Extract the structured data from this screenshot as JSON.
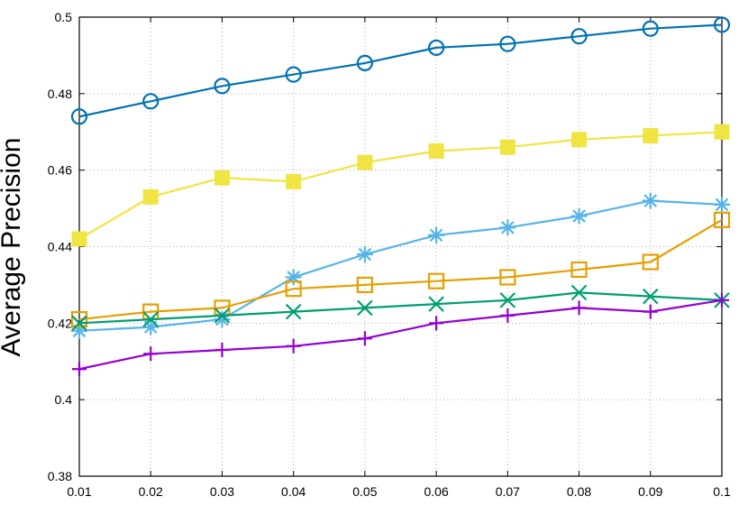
{
  "chart_data": {
    "type": "line",
    "title": "",
    "xlabel": "",
    "ylabel": "Average Precision",
    "xlim": [
      0.01,
      0.1
    ],
    "ylim": [
      0.38,
      0.5
    ],
    "x": [
      0.01,
      0.02,
      0.03,
      0.04,
      0.05,
      0.06,
      0.07,
      0.08,
      0.09,
      0.1
    ],
    "x_tick_labels": [
      "0.01",
      "0.02",
      "0.03",
      "0.04",
      "0.05",
      "0.06",
      "0.07",
      "0.08",
      "0.09",
      "0.1"
    ],
    "y_ticks": [
      0.38,
      0.4,
      0.42,
      0.44,
      0.46,
      0.48,
      0.5
    ],
    "y_tick_labels": [
      "0.38",
      "0.4",
      "0.42",
      "0.44",
      "0.46",
      "0.48",
      "0.5"
    ],
    "grid": true,
    "legend": "none",
    "series": [
      {
        "color": "#0072b2",
        "marker": "circle-open",
        "values": [
          0.474,
          0.478,
          0.482,
          0.485,
          0.488,
          0.492,
          0.493,
          0.495,
          0.497,
          0.498
        ]
      },
      {
        "color": "#f0e442",
        "marker": "square-filled",
        "values": [
          0.442,
          0.453,
          0.458,
          0.457,
          0.462,
          0.465,
          0.466,
          0.468,
          0.469,
          0.47
        ]
      },
      {
        "color": "#56b4e9",
        "marker": "asterisk",
        "values": [
          0.418,
          0.419,
          0.421,
          0.432,
          0.438,
          0.443,
          0.445,
          0.448,
          0.452,
          0.451
        ]
      },
      {
        "color": "#e69f00",
        "marker": "square-open",
        "values": [
          0.421,
          0.423,
          0.424,
          0.429,
          0.43,
          0.431,
          0.432,
          0.434,
          0.436,
          0.447
        ]
      },
      {
        "color": "#009e73",
        "marker": "cross-x",
        "values": [
          0.42,
          0.421,
          0.422,
          0.423,
          0.424,
          0.425,
          0.426,
          0.428,
          0.427,
          0.426
        ]
      },
      {
        "color": "#9400d3",
        "marker": "plus",
        "values": [
          0.408,
          0.412,
          0.413,
          0.414,
          0.416,
          0.42,
          0.422,
          0.424,
          0.423,
          0.426
        ]
      }
    ]
  }
}
